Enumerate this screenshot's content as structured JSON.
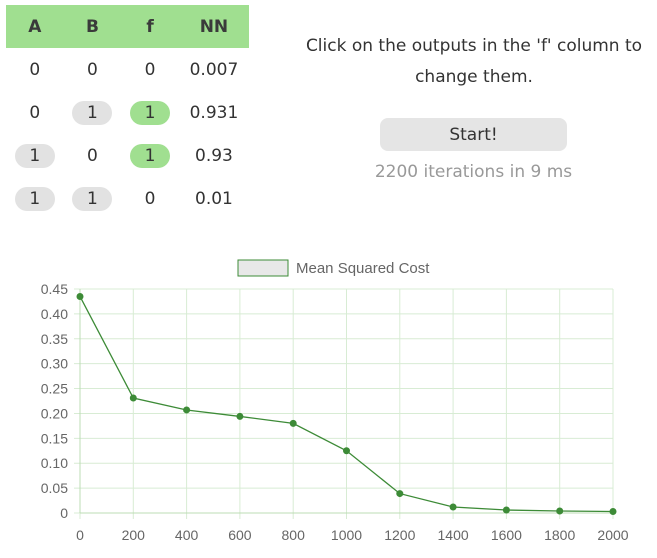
{
  "table": {
    "headers": [
      "A",
      "B",
      "f",
      "NN"
    ],
    "rows": [
      {
        "A": "0",
        "B": "0",
        "f": "0",
        "NN": "0.007"
      },
      {
        "A": "0",
        "B": "1",
        "f": "1",
        "NN": "0.931"
      },
      {
        "A": "1",
        "B": "0",
        "f": "1",
        "NN": "0.93"
      },
      {
        "A": "1",
        "B": "1",
        "f": "0",
        "NN": "0.01"
      }
    ]
  },
  "instructions": "Click on the outputs in the 'f' column to change them.",
  "start_label": "Start!",
  "status": "2200 iterations in 9 ms",
  "colors": {
    "header_bg": "#a0df90",
    "pill_on": "#a0df90",
    "pill_inactive": "#e2e2e2",
    "line": "#3d8b37",
    "grid": "#d8ecd4"
  },
  "chart_data": {
    "type": "line",
    "legend_position": "top",
    "grid": true,
    "x": [
      0,
      200,
      400,
      600,
      800,
      1000,
      1200,
      1400,
      1600,
      1800,
      2000
    ],
    "series": [
      {
        "name": "Mean Squared Cost",
        "values": [
          0.435,
          0.231,
          0.207,
          0.194,
          0.18,
          0.125,
          0.039,
          0.012,
          0.006,
          0.004,
          0.003
        ]
      }
    ],
    "ylim": [
      0,
      0.45
    ],
    "yticks": [
      "0",
      "0.05",
      "0.10",
      "0.15",
      "0.20",
      "0.25",
      "0.30",
      "0.35",
      "0.40",
      "0.45"
    ],
    "xticks": [
      "0",
      "200",
      "400",
      "600",
      "800",
      "1000",
      "1200",
      "1400",
      "1600",
      "1800",
      "2000"
    ]
  }
}
